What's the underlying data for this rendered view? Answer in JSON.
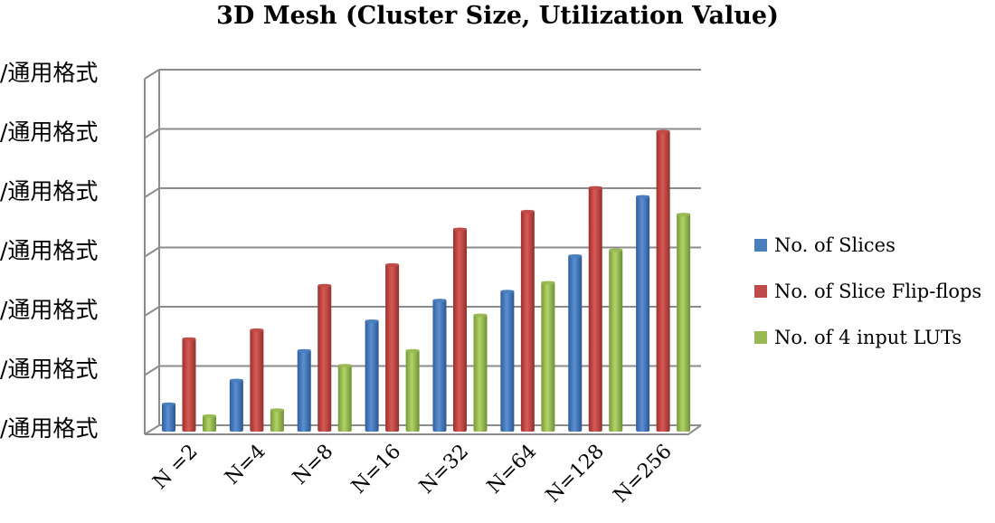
{
  "chart_data": {
    "type": "bar",
    "title": "3D Mesh (Cluster Size,  Utilization Value)",
    "categories": [
      "N =2",
      "N=4",
      "N=8",
      "N=16",
      "N=32",
      "N=64",
      "N=128",
      "N=256"
    ],
    "ytick_labels": [
      "/通用格式",
      "/通用格式",
      "/通用格式",
      "/通用格式",
      "/通用格式",
      "/通用格式",
      "/通用格式"
    ],
    "ylim": [
      0,
      6
    ],
    "grid": true,
    "legend_position": "right",
    "series": [
      {
        "name": "No. of Slices",
        "color": "#4a7ebb",
        "values": [
          0.5,
          0.9,
          1.4,
          1.9,
          2.25,
          2.4,
          3.0,
          4.0
        ]
      },
      {
        "name": "No. of Slice Flip-flops",
        "color": "#be4b48",
        "values": [
          1.6,
          1.75,
          2.5,
          2.85,
          3.45,
          3.75,
          4.15,
          5.1
        ]
      },
      {
        "name": "No. of 4 input LUTs",
        "color": "#98b954",
        "values": [
          0.3,
          0.4,
          1.15,
          1.4,
          2.0,
          2.55,
          3.1,
          3.7
        ]
      }
    ]
  }
}
